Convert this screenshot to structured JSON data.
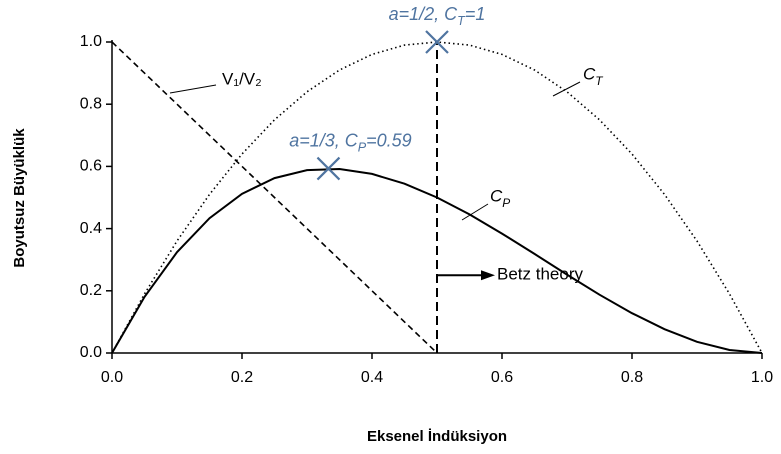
{
  "chart_data": {
    "type": "line",
    "xlabel": "Eksenel İndüksiyon",
    "ylabel": "Boyutsuz Büyüklük",
    "x": [
      0,
      0.05,
      0.1,
      0.15,
      0.2,
      0.25,
      0.3,
      0.35,
      0.4,
      0.45,
      0.5,
      0.55,
      0.6,
      0.65,
      0.7,
      0.75,
      0.8,
      0.85,
      0.9,
      0.95,
      1.0
    ],
    "series": [
      {
        "name": "CT",
        "color": "#000000",
        "style": "dotted",
        "values": [
          0,
          0.19,
          0.36,
          0.51,
          0.64,
          0.75,
          0.84,
          0.91,
          0.96,
          0.99,
          1.0,
          0.99,
          0.96,
          0.91,
          0.84,
          0.75,
          0.64,
          0.51,
          0.36,
          0.19,
          0
        ]
      },
      {
        "name": "CP",
        "color": "#000000",
        "style": "solid",
        "values": [
          0,
          0.1805,
          0.324,
          0.4335,
          0.512,
          0.5625,
          0.588,
          0.5915,
          0.576,
          0.5445,
          0.5,
          0.4455,
          0.384,
          0.3185,
          0.252,
          0.1875,
          0.128,
          0.0765,
          0.036,
          0.0095,
          0
        ]
      },
      {
        "name": "V₁/V₂",
        "color": "#000000",
        "style": "dashed",
        "values": [
          1,
          0.9,
          0.8,
          0.7,
          0.6,
          0.5,
          0.4,
          0.3,
          0.2,
          0.1,
          0,
          null,
          null,
          null,
          null,
          null,
          null,
          null,
          null,
          null,
          null
        ]
      }
    ],
    "markers": [
      {
        "x": 0.5,
        "y": 1.0,
        "label": "a=1/2, CT=1",
        "color": "#4f74a0"
      },
      {
        "x": 0.333,
        "y": 0.593,
        "label": "a=1/3, CP=0.59",
        "color": "#4f74a0"
      }
    ],
    "vline": {
      "x": 0.5,
      "ylim": [
        0,
        1.0
      ],
      "label": "Betz theory",
      "y": 0.25
    },
    "xlim": [
      0,
      1.0
    ],
    "ylim": [
      0,
      1.0
    ],
    "xticks": [
      {
        "value": 0,
        "label": "0.0"
      },
      0.2,
      0.4,
      0.6,
      0.8,
      {
        "value": 1,
        "label": "1.0"
      }
    ],
    "yticks": [
      {
        "value": 0,
        "label": "0.0"
      },
      0.2,
      0.4,
      0.6,
      0.8,
      {
        "value": 1,
        "label": "1.0"
      }
    ]
  }
}
